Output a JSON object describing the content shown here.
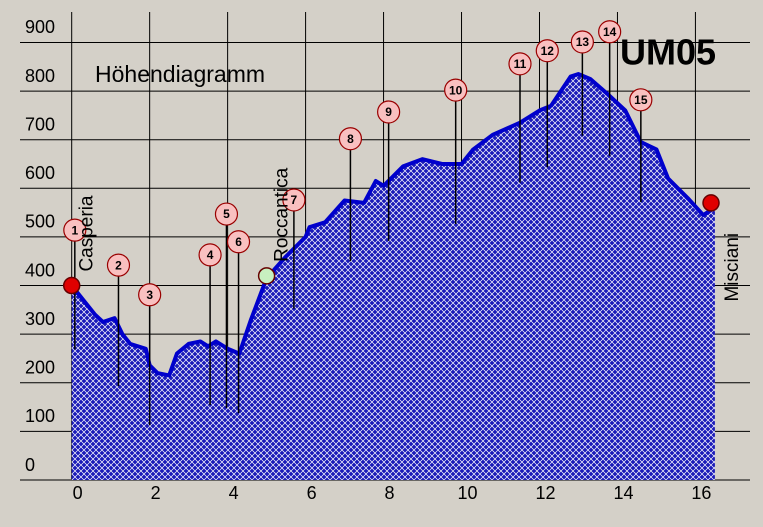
{
  "chart_data": {
    "type": "area",
    "title": "Höhendiagramm",
    "subtitle": "UM05",
    "x": [
      0,
      0.3,
      0.6,
      0.8,
      1.1,
      1.3,
      1.5,
      1.9,
      2.0,
      2.2,
      2.5,
      2.7,
      3.0,
      3.3,
      3.5,
      3.7,
      4.0,
      4.3,
      4.6,
      5.0,
      5.5,
      6.0,
      6.1,
      6.5,
      7.0,
      7.5,
      7.8,
      8.0,
      8.5,
      9.0,
      9.5,
      10.0,
      10.3,
      10.8,
      11.5,
      12.0,
      12.3,
      12.8,
      13.0,
      13.3,
      13.8,
      14.2,
      14.6,
      15.0,
      15.3,
      15.8,
      16.2,
      16.5
    ],
    "series": [
      {
        "color": "#0000cc",
        "values": [
          400,
          370,
          340,
          325,
          333,
          300,
          280,
          270,
          236,
          220,
          215,
          260,
          280,
          285,
          275,
          285,
          270,
          260,
          330,
          415,
          460,
          500,
          520,
          530,
          575,
          570,
          615,
          605,
          645,
          660,
          650,
          650,
          680,
          710,
          735,
          760,
          770,
          830,
          835,
          825,
          790,
          760,
          695,
          680,
          620,
          580,
          545,
          560
        ]
      }
    ],
    "places": [
      {
        "name": "Casperia",
        "x": 0,
        "y": 400,
        "color": "#e00000"
      },
      {
        "name": "Roccantica",
        "x": 5.0,
        "y": 420,
        "color": "#c8f0c0"
      },
      {
        "name": "Misciani",
        "x": 16.4,
        "y": 570,
        "color": "#e00000"
      }
    ],
    "waypoints": {
      "labels": [
        "1",
        "2",
        "3",
        "4",
        "5",
        "6",
        "7",
        "8",
        "9",
        "10",
        "11",
        "12",
        "13",
        "14",
        "15"
      ],
      "x": [
        0.08,
        1.2,
        2.0,
        3.55,
        3.97,
        4.28,
        5.7,
        7.15,
        8.13,
        9.85,
        11.5,
        12.2,
        13.1,
        13.8,
        14.6
      ],
      "y": [
        514,
        442,
        381,
        463,
        547,
        490,
        576,
        702,
        757,
        802,
        856,
        883,
        901,
        922,
        782
      ]
    },
    "xlim": [
      -0.3,
      17.4
    ],
    "xticks": [
      0,
      2,
      4,
      6,
      8,
      10,
      12,
      14,
      16
    ],
    "ylim": [
      0,
      975
    ],
    "yticks": [
      0,
      100,
      200,
      300,
      400,
      500,
      600,
      700,
      800,
      900
    ],
    "grid": true
  }
}
